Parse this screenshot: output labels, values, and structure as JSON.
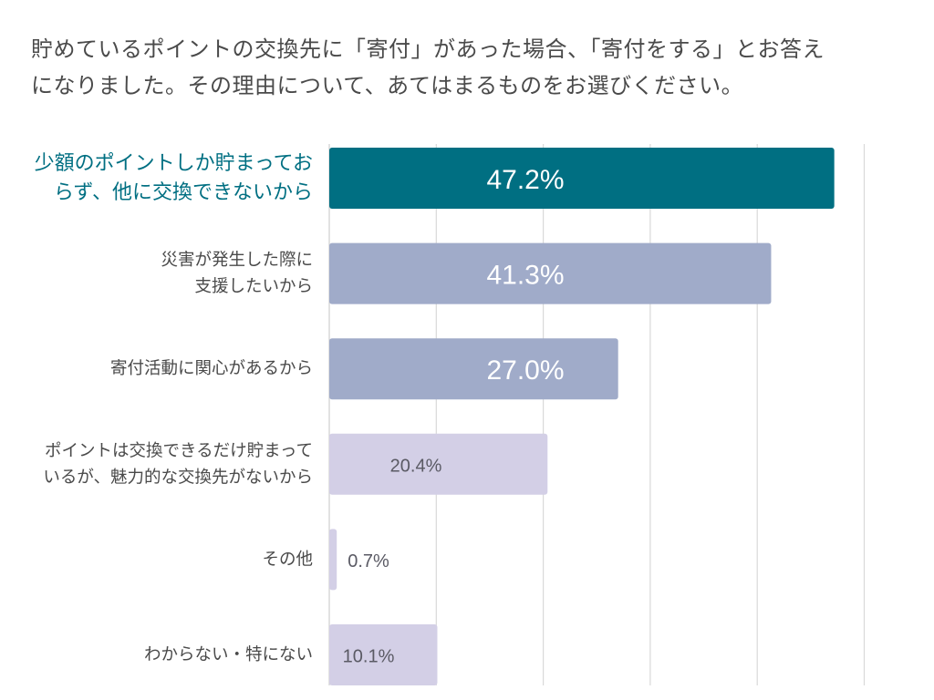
{
  "title_lines": [
    "貯めているポイントの交換先に「寄付」があった場合、「寄付をする」とお答え",
    "になりました。その理由について、あてはまるものをお選びください。"
  ],
  "chart_data": {
    "type": "bar",
    "orientation": "horizontal",
    "title": "貯めているポイントの交換先に「寄付」があった場合、「寄付をする」とお答えになりました。その理由について、あてはまるものをお選びください。",
    "categories": [
      [
        "少額のポイントしか貯まってお",
        "らず、他に交換できないから"
      ],
      [
        "災害が発生した際に",
        "支援したいから"
      ],
      [
        "寄付活動に関心があるから"
      ],
      [
        "ポイントは交換できるだけ貯まって",
        "いるが、魅力的な交換先がないから"
      ],
      [
        "その他"
      ],
      [
        "わからない・特にない"
      ]
    ],
    "values": [
      47.2,
      41.3,
      27.0,
      20.4,
      0.7,
      10.1
    ],
    "value_labels": [
      "47.2%",
      "41.3%",
      "27.0%",
      "20.4%",
      "0.7%",
      "10.1%"
    ],
    "xlim": [
      0,
      50
    ],
    "grid": true,
    "colors": {
      "highlight": "#006f82",
      "mid": "#a0abc9",
      "low": "#d3cfe6",
      "highlight_label": "#006f82",
      "label": "#4a4a4a",
      "value_dark": "#5a5a64",
      "value_light": "#ffffff",
      "gridline": "#d9d9d9"
    },
    "bar_color_groups": [
      "highlight",
      "mid",
      "mid",
      "low",
      "low",
      "low"
    ]
  }
}
